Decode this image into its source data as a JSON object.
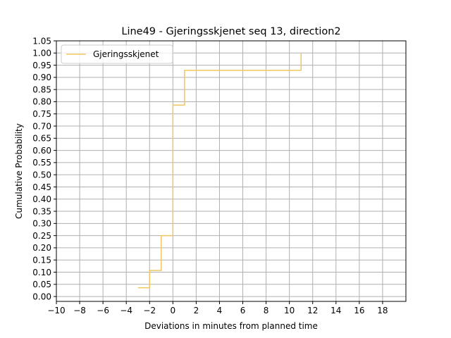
{
  "chart_data": {
    "type": "line",
    "title": "Line49 - Gjeringsskjenet seq 13, direction2",
    "xlabel": "Deviations in minutes from planned time",
    "ylabel": "Cumulative Probability",
    "xlim": [
      -10,
      20
    ],
    "ylim": [
      -0.02,
      1.05
    ],
    "x_ticks": [
      -10,
      -8,
      -6,
      -4,
      -2,
      0,
      2,
      4,
      6,
      8,
      10,
      12,
      14,
      16,
      18
    ],
    "x_tick_labels": [
      "−10",
      "−8",
      "−6",
      "−4",
      "−2",
      "0",
      "2",
      "4",
      "6",
      "8",
      "10",
      "12",
      "14",
      "16",
      "18"
    ],
    "y_ticks": [
      0.0,
      0.05,
      0.1,
      0.15,
      0.2,
      0.25,
      0.3,
      0.35,
      0.4,
      0.45,
      0.5,
      0.55,
      0.6,
      0.65,
      0.7,
      0.75,
      0.8,
      0.85,
      0.9,
      0.95,
      1.0,
      1.05
    ],
    "y_tick_labels": [
      "0.00",
      "0.05",
      "0.10",
      "0.15",
      "0.20",
      "0.25",
      "0.30",
      "0.35",
      "0.40",
      "0.45",
      "0.50",
      "0.55",
      "0.60",
      "0.65",
      "0.70",
      "0.75",
      "0.80",
      "0.85",
      "0.90",
      "0.95",
      "1.00",
      "1.05"
    ],
    "grid": true,
    "legend_position": "top-left",
    "series": [
      {
        "name": "Gjeringsskjenet",
        "color": "#f0c75e",
        "step": "post",
        "x": [
          -3,
          -2,
          -1,
          0,
          1,
          11
        ],
        "y": [
          0.036,
          0.107,
          0.25,
          0.786,
          0.929,
          0.964
        ],
        "end_point": [
          11,
          1.0
        ]
      }
    ]
  }
}
